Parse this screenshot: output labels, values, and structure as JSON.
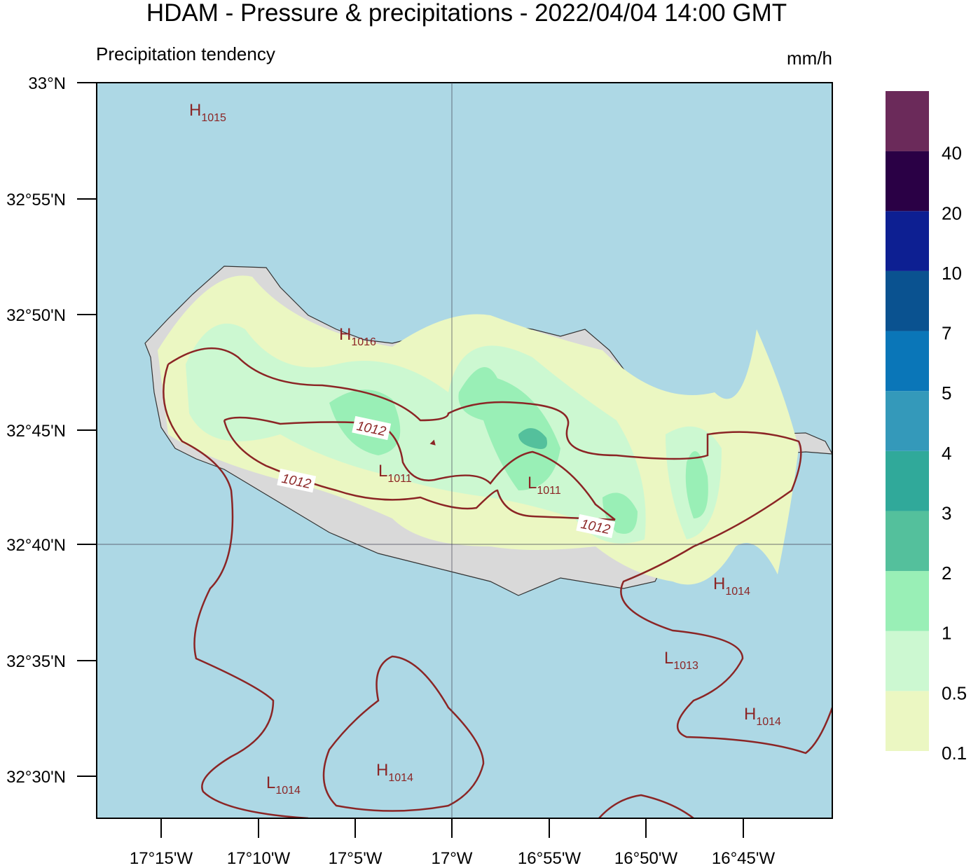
{
  "header": {
    "title": "HDAM - Pressure & precipitations  -  2022/04/04  14:00 GMT",
    "subtitle": "Precipitation tendency",
    "unit": "mm/h"
  },
  "map": {
    "lat_ticks": [
      "33°N",
      "32°55'N",
      "32°50'N",
      "32°45'N",
      "32°40'N",
      "32°35'N",
      "32°30'N"
    ],
    "lon_ticks": [
      "17°15'W",
      "17°10'W",
      "17°5'W",
      "17°W",
      "16°55'W",
      "16°50'W",
      "16°45'W"
    ],
    "pressure_labels": [
      {
        "letter": "H",
        "value": "1015"
      },
      {
        "letter": "H",
        "value": "1016"
      },
      {
        "letter": "L",
        "value": "1011"
      },
      {
        "letter": "L",
        "value": "1011"
      },
      {
        "letter": "H",
        "value": "1014"
      },
      {
        "letter": "L",
        "value": "1013"
      },
      {
        "letter": "H",
        "value": "1014"
      },
      {
        "letter": "L",
        "value": "1014"
      },
      {
        "letter": "H",
        "value": "1014"
      }
    ],
    "contour_labels": [
      "1012",
      "1012",
      "1012"
    ]
  },
  "colorbar": {
    "ticks": [
      0.1,
      0.5,
      1,
      2,
      3,
      4,
      5,
      7,
      10,
      20,
      40
    ],
    "colors": [
      "#ebf7c2",
      "#ccf8d1",
      "#99efb6",
      "#54c09c",
      "#30a99a",
      "#3499ba",
      "#0a76b8",
      "#0a5290",
      "#0d1f92",
      "#2a0045",
      "#6b2a5a"
    ]
  }
}
